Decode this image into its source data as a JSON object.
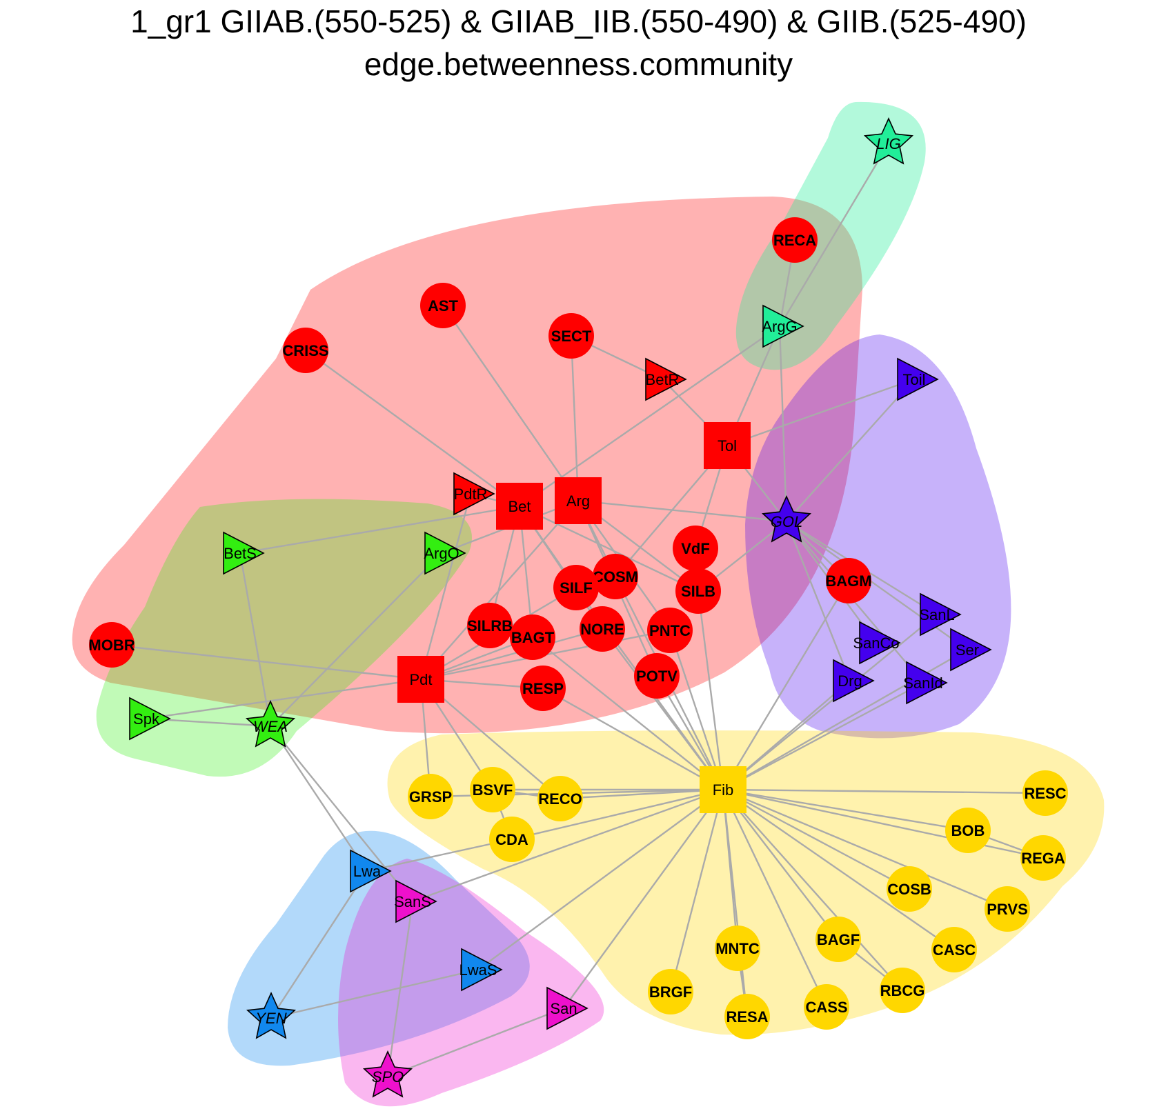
{
  "title": {
    "line1": "1_gr1 GIIAB.(550-525) & GIIAB_IIB.(550-490) & GIIB.(525-490)",
    "line2": "edge.betweenness.community"
  },
  "community_colors": {
    "red": "#ff0000",
    "green": "#33ee11",
    "teal": "#22ee99",
    "violet": "#4400ee",
    "gold": "#ffd700",
    "blue": "#1188ee",
    "magenta": "#ee11cc"
  },
  "edge_color": "#aaaaaa",
  "nodes": [
    {
      "id": "LIG",
      "shape": "star",
      "community": "teal"
    },
    {
      "id": "RECA",
      "shape": "circle",
      "community": "red"
    },
    {
      "id": "ArgG",
      "shape": "triangle",
      "community": "teal"
    },
    {
      "id": "AST",
      "shape": "circle",
      "community": "red"
    },
    {
      "id": "CRISS",
      "shape": "circle",
      "community": "red"
    },
    {
      "id": "SECT",
      "shape": "circle",
      "community": "red"
    },
    {
      "id": "BetR",
      "shape": "triangle",
      "community": "red"
    },
    {
      "id": "Toil",
      "shape": "triangle",
      "community": "violet"
    },
    {
      "id": "Tol",
      "shape": "square",
      "community": "red"
    },
    {
      "id": "PdtR",
      "shape": "triangle",
      "community": "red"
    },
    {
      "id": "Bet",
      "shape": "square",
      "community": "red"
    },
    {
      "id": "Arg",
      "shape": "square",
      "community": "red"
    },
    {
      "id": "GOL",
      "shape": "star",
      "community": "violet"
    },
    {
      "id": "BetS",
      "shape": "triangle",
      "community": "green"
    },
    {
      "id": "ArgO",
      "shape": "triangle",
      "community": "green"
    },
    {
      "id": "VdF",
      "shape": "circle",
      "community": "red"
    },
    {
      "id": "COSM",
      "shape": "circle",
      "community": "red"
    },
    {
      "id": "SILF",
      "shape": "circle",
      "community": "red"
    },
    {
      "id": "SILB",
      "shape": "circle",
      "community": "red"
    },
    {
      "id": "BAGM",
      "shape": "circle",
      "community": "red"
    },
    {
      "id": "SanL",
      "shape": "triangle",
      "community": "violet"
    },
    {
      "id": "SILRB",
      "shape": "circle",
      "community": "red"
    },
    {
      "id": "BAGT",
      "shape": "circle",
      "community": "red"
    },
    {
      "id": "NORE",
      "shape": "circle",
      "community": "red"
    },
    {
      "id": "PNTC",
      "shape": "circle",
      "community": "red"
    },
    {
      "id": "SanCo",
      "shape": "triangle",
      "community": "violet"
    },
    {
      "id": "Ser",
      "shape": "triangle",
      "community": "violet"
    },
    {
      "id": "MOBR",
      "shape": "circle",
      "community": "red"
    },
    {
      "id": "Pdt",
      "shape": "square",
      "community": "red"
    },
    {
      "id": "POTV",
      "shape": "circle",
      "community": "red"
    },
    {
      "id": "Drg",
      "shape": "triangle",
      "community": "violet"
    },
    {
      "id": "SanId",
      "shape": "triangle",
      "community": "violet"
    },
    {
      "id": "RESP",
      "shape": "circle",
      "community": "red"
    },
    {
      "id": "Spk",
      "shape": "triangle",
      "community": "green"
    },
    {
      "id": "WEA",
      "shape": "star",
      "community": "green"
    },
    {
      "id": "GRSP",
      "shape": "circle",
      "community": "gold"
    },
    {
      "id": "BSVF",
      "shape": "circle",
      "community": "gold"
    },
    {
      "id": "RECO",
      "shape": "circle",
      "community": "gold"
    },
    {
      "id": "Fib",
      "shape": "square",
      "community": "gold"
    },
    {
      "id": "RESC",
      "shape": "circle",
      "community": "gold"
    },
    {
      "id": "CDA",
      "shape": "circle",
      "community": "gold"
    },
    {
      "id": "BOB",
      "shape": "circle",
      "community": "gold"
    },
    {
      "id": "REGA",
      "shape": "circle",
      "community": "gold"
    },
    {
      "id": "Lwa",
      "shape": "triangle",
      "community": "blue"
    },
    {
      "id": "SanS",
      "shape": "triangle",
      "community": "magenta"
    },
    {
      "id": "COSB",
      "shape": "circle",
      "community": "gold"
    },
    {
      "id": "PRVS",
      "shape": "circle",
      "community": "gold"
    },
    {
      "id": "BAGF",
      "shape": "circle",
      "community": "gold"
    },
    {
      "id": "MNTC",
      "shape": "circle",
      "community": "gold"
    },
    {
      "id": "CASC",
      "shape": "circle",
      "community": "gold"
    },
    {
      "id": "LwaS",
      "shape": "triangle",
      "community": "blue"
    },
    {
      "id": "BRGF",
      "shape": "circle",
      "community": "gold"
    },
    {
      "id": "RBCG",
      "shape": "circle",
      "community": "gold"
    },
    {
      "id": "San",
      "shape": "triangle",
      "community": "magenta"
    },
    {
      "id": "CASS",
      "shape": "circle",
      "community": "gold"
    },
    {
      "id": "RESA",
      "shape": "circle",
      "community": "gold"
    },
    {
      "id": "YEN",
      "shape": "star",
      "community": "blue"
    },
    {
      "id": "SPO",
      "shape": "star",
      "community": "magenta"
    }
  ],
  "edges": [
    [
      "LIG",
      "ArgG"
    ],
    [
      "RECA",
      "ArgG"
    ],
    [
      "ArgG",
      "Tol"
    ],
    [
      "ArgG",
      "Bet"
    ],
    [
      "ArgG",
      "GOL"
    ],
    [
      "AST",
      "Arg"
    ],
    [
      "CRISS",
      "Bet"
    ],
    [
      "SECT",
      "BetR"
    ],
    [
      "SECT",
      "Arg"
    ],
    [
      "BetR",
      "Tol"
    ],
    [
      "Toil",
      "GOL"
    ],
    [
      "Toil",
      "Tol"
    ],
    [
      "Tol",
      "GOL"
    ],
    [
      "Tol",
      "COSM"
    ],
    [
      "Tol",
      "VdF"
    ],
    [
      "PdtR",
      "Bet"
    ],
    [
      "PdtR",
      "Pdt"
    ],
    [
      "Bet",
      "BetS"
    ],
    [
      "Bet",
      "SILF"
    ],
    [
      "Bet",
      "NORE"
    ],
    [
      "Bet",
      "BAGT"
    ],
    [
      "Bet",
      "SILRB"
    ],
    [
      "Bet",
      "SILB"
    ],
    [
      "Arg",
      "GOL"
    ],
    [
      "Arg",
      "COSM"
    ],
    [
      "Arg",
      "SILB"
    ],
    [
      "Arg",
      "POTV"
    ],
    [
      "Arg",
      "Pdt"
    ],
    [
      "Arg",
      "PNTC"
    ],
    [
      "ArgO",
      "WEA"
    ],
    [
      "ArgO",
      "Arg"
    ],
    [
      "BetS",
      "WEA"
    ],
    [
      "GOL",
      "BAGM"
    ],
    [
      "GOL",
      "SanL"
    ],
    [
      "GOL",
      "SanCo"
    ],
    [
      "GOL",
      "Ser"
    ],
    [
      "GOL",
      "Drg"
    ],
    [
      "GOL",
      "SanId"
    ],
    [
      "GOL",
      "SILB"
    ],
    [
      "MOBR",
      "Pdt"
    ],
    [
      "Pdt",
      "SILF"
    ],
    [
      "Pdt",
      "BAGT"
    ],
    [
      "Pdt",
      "NORE"
    ],
    [
      "Pdt",
      "RESP"
    ],
    [
      "Pdt",
      "PNTC"
    ],
    [
      "Pdt",
      "Spk"
    ],
    [
      "Pdt",
      "GRSP"
    ],
    [
      "Pdt",
      "BSVF"
    ],
    [
      "Pdt",
      "RECO"
    ],
    [
      "Spk",
      "WEA"
    ],
    [
      "WEA",
      "Lwa"
    ],
    [
      "WEA",
      "SanS"
    ],
    [
      "BAGM",
      "Fib"
    ],
    [
      "SILB",
      "Fib"
    ],
    [
      "COSM",
      "Fib"
    ],
    [
      "NORE",
      "Fib"
    ],
    [
      "PNTC",
      "Fib"
    ],
    [
      "POTV",
      "Fib"
    ],
    [
      "SILF",
      "Fib"
    ],
    [
      "BAGT",
      "Fib"
    ],
    [
      "RESP",
      "Fib"
    ],
    [
      "Drg",
      "Fib"
    ],
    [
      "SanId",
      "Fib"
    ],
    [
      "SanL",
      "Fib"
    ],
    [
      "Ser",
      "Fib"
    ],
    [
      "GRSP",
      "Fib"
    ],
    [
      "BSVF",
      "Fib"
    ],
    [
      "RECO",
      "Fib"
    ],
    [
      "CDA",
      "Fib"
    ],
    [
      "RESC",
      "Fib"
    ],
    [
      "BOB",
      "Fib"
    ],
    [
      "REGA",
      "Fib"
    ],
    [
      "COSB",
      "Fib"
    ],
    [
      "PRVS",
      "Fib"
    ],
    [
      "CASC",
      "Fib"
    ],
    [
      "BAGF",
      "Fib"
    ],
    [
      "MNTC",
      "Fib"
    ],
    [
      "CASS",
      "Fib"
    ],
    [
      "BRGF",
      "Fib"
    ],
    [
      "RBCG",
      "Fib"
    ],
    [
      "RESA",
      "Fib"
    ],
    [
      "SanS",
      "Fib"
    ],
    [
      "LwaS",
      "Fib"
    ],
    [
      "San",
      "Fib"
    ],
    [
      "Lwa",
      "CDA"
    ],
    [
      "Lwa",
      "YEN"
    ],
    [
      "LwaS",
      "YEN"
    ],
    [
      "SanS",
      "SPO"
    ],
    [
      "San",
      "SPO"
    ],
    [
      "MNTC",
      "RESA"
    ],
    [
      "BAGF",
      "RBCG"
    ],
    [
      "BOB",
      "REGA"
    ],
    [
      "BSVF",
      "CDA"
    ],
    [
      "BSVF",
      "RECO"
    ]
  ]
}
